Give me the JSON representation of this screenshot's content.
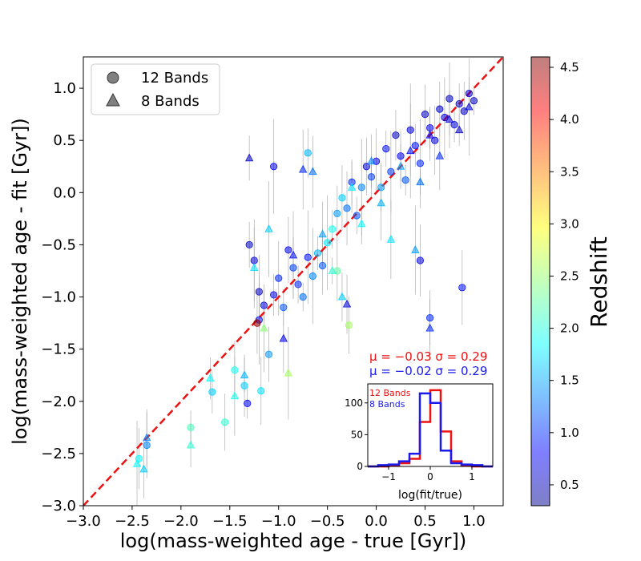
{
  "chart_data": [
    {
      "type": "scatter",
      "xlabel": "log(mass-weighted age - true [Gyr])",
      "ylabel": "log(mass-weighted age - fit [Gyr])",
      "xlim": [
        -3.0,
        1.3
      ],
      "ylim": [
        -3.0,
        1.3
      ],
      "x_ticks": [
        "−3.0",
        "−2.5",
        "−2.0",
        "−1.5",
        "−1.0",
        "−0.5",
        "0.0",
        "0.5",
        "1.0"
      ],
      "y_ticks": [
        "−3.0",
        "−2.5",
        "−2.0",
        "−1.5",
        "−1.0",
        "−0.5",
        "0.0",
        "0.5",
        "1.0"
      ],
      "reference_line": {
        "label": "1:1",
        "color": "#ee1111",
        "style": "dashed",
        "from": [
          -3.0,
          -3.0
        ],
        "to": [
          1.3,
          1.3
        ]
      },
      "legend": {
        "position": "upper-left",
        "entries": [
          {
            "label": "12 Bands",
            "marker": "circle"
          },
          {
            "label": "8 Bands",
            "marker": "triangle"
          }
        ]
      },
      "annotations": {
        "stats_12": "μ = −0.03  σ = 0.29",
        "stats_8": "μ = −0.02  σ = 0.29",
        "stats_12_color": "#ee1111",
        "stats_8_color": "#1a1aee"
      },
      "colorbar": {
        "label": "Redshift",
        "range": [
          0.3,
          4.6
        ],
        "ticks": [
          "0.5",
          "1.0",
          "1.5",
          "2.0",
          "2.5",
          "3.0",
          "3.5",
          "4.0",
          "4.5"
        ]
      },
      "series": [
        {
          "name": "12 Bands",
          "marker": "circle",
          "points": [
            [
              -2.43,
              -2.55,
              1.9
            ],
            [
              -2.35,
              -2.42,
              1.4
            ],
            [
              -1.9,
              -2.25,
              2.2
            ],
            [
              -1.68,
              -1.91,
              1.7
            ],
            [
              -1.45,
              -1.7,
              2.0
            ],
            [
              -1.35,
              -1.85,
              1.7
            ],
            [
              -1.32,
              -2.02,
              0.8
            ],
            [
              -1.2,
              -1.22,
              0.9
            ],
            [
              -1.18,
              -1.9,
              1.8
            ],
            [
              -1.1,
              -1.55,
              1.5
            ],
            [
              -1.3,
              -0.5,
              0.6
            ],
            [
              -1.25,
              -0.65,
              0.7
            ],
            [
              -1.2,
              -0.95,
              0.6
            ],
            [
              -1.15,
              -1.08,
              0.7
            ],
            [
              -1.22,
              -1.25,
              4.5
            ],
            [
              -1.05,
              -0.98,
              0.8
            ],
            [
              -1.0,
              -0.82,
              1.0
            ],
            [
              -0.95,
              -1.1,
              1.2
            ],
            [
              -0.9,
              -0.55,
              0.8
            ],
            [
              -0.85,
              -0.72,
              1.1
            ],
            [
              -0.8,
              -0.88,
              1.0
            ],
            [
              -0.75,
              -1.0,
              1.3
            ],
            [
              -0.7,
              -0.62,
              0.9
            ],
            [
              -0.65,
              -0.8,
              1.4
            ],
            [
              -0.6,
              -0.58,
              1.6
            ],
            [
              -0.55,
              -0.7,
              1.2
            ],
            [
              -0.5,
              -0.48,
              1.8
            ],
            [
              -0.45,
              -0.35,
              2.0
            ],
            [
              -0.4,
              -0.2,
              1.5
            ],
            [
              -0.35,
              -0.05,
              1.7
            ],
            [
              -0.3,
              -0.15,
              1.3
            ],
            [
              -0.25,
              0.1,
              1.0
            ],
            [
              -0.2,
              -0.22,
              1.2
            ],
            [
              -0.15,
              0.05,
              1.4
            ],
            [
              -0.1,
              0.25,
              0.7
            ],
            [
              -0.05,
              0.15,
              1.1
            ],
            [
              0.0,
              0.3,
              0.8
            ],
            [
              0.05,
              0.05,
              1.5
            ],
            [
              0.1,
              0.42,
              0.9
            ],
            [
              0.15,
              0.2,
              1.1
            ],
            [
              0.2,
              0.55,
              0.6
            ],
            [
              0.25,
              0.35,
              0.8
            ],
            [
              0.3,
              0.12,
              1.2
            ],
            [
              0.35,
              0.6,
              0.7
            ],
            [
              0.4,
              0.45,
              0.9
            ],
            [
              0.45,
              0.28,
              1.0
            ],
            [
              0.5,
              0.75,
              0.6
            ],
            [
              0.55,
              0.62,
              0.8
            ],
            [
              0.6,
              0.5,
              0.7
            ],
            [
              0.65,
              0.8,
              0.6
            ],
            [
              0.7,
              0.72,
              0.7
            ],
            [
              0.75,
              0.9,
              0.6
            ],
            [
              0.8,
              0.65,
              0.7
            ],
            [
              0.85,
              0.85,
              0.6
            ],
            [
              0.9,
              0.78,
              0.6
            ],
            [
              0.95,
              0.95,
              0.7
            ],
            [
              1.0,
              0.88,
              0.6
            ],
            [
              0.55,
              -1.2,
              1.0
            ],
            [
              0.88,
              -0.91,
              0.9
            ],
            [
              0.45,
              -0.65,
              0.7
            ],
            [
              -1.05,
              0.25,
              0.8
            ],
            [
              -0.7,
              0.38,
              1.6
            ],
            [
              -0.28,
              -1.27,
              2.6
            ],
            [
              -0.4,
              -0.75,
              2.3
            ],
            [
              -1.55,
              -2.2,
              2.1
            ]
          ]
        },
        {
          "name": "8 Bands",
          "marker": "triangle",
          "points": [
            [
              -2.45,
              -2.6,
              1.9
            ],
            [
              -2.38,
              -2.65,
              1.7
            ],
            [
              -2.35,
              -2.35,
              1.4
            ],
            [
              -1.9,
              -2.42,
              2.1
            ],
            [
              -1.7,
              -1.78,
              1.9
            ],
            [
              -1.45,
              -1.95,
              2.0
            ],
            [
              -1.35,
              -1.75,
              1.6
            ],
            [
              -1.3,
              0.33,
              0.6
            ],
            [
              -1.25,
              -0.72,
              1.8
            ],
            [
              -1.15,
              -1.3,
              2.5
            ],
            [
              -1.1,
              -0.35,
              1.7
            ],
            [
              -0.9,
              -1.73,
              2.6
            ],
            [
              -0.85,
              -0.6,
              0.9
            ],
            [
              -0.75,
              0.22,
              1.0
            ],
            [
              -0.65,
              0.2,
              1.3
            ],
            [
              -0.55,
              -0.4,
              1.5
            ],
            [
              -0.45,
              -0.75,
              2.1
            ],
            [
              -0.35,
              -1.0,
              1.7
            ],
            [
              -0.25,
              0.05,
              1.8
            ],
            [
              -0.15,
              -0.3,
              1.9
            ],
            [
              -0.05,
              0.3,
              1.4
            ],
            [
              0.05,
              -0.1,
              1.6
            ],
            [
              0.15,
              -0.45,
              1.8
            ],
            [
              0.25,
              0.25,
              1.5
            ],
            [
              0.35,
              0.4,
              0.9
            ],
            [
              0.45,
              0.1,
              1.3
            ],
            [
              0.55,
              0.55,
              0.8
            ],
            [
              0.65,
              0.35,
              1.0
            ],
            [
              0.75,
              0.7,
              0.7
            ],
            [
              0.85,
              0.6,
              0.6
            ],
            [
              0.95,
              0.82,
              0.7
            ],
            [
              0.55,
              -1.3,
              1.0
            ],
            [
              0.4,
              -0.55,
              1.5
            ],
            [
              -0.95,
              -1.4,
              0.8
            ],
            [
              -0.3,
              -1.07,
              0.7
            ]
          ]
        }
      ]
    },
    {
      "type": "histogram",
      "position": "inset lower-right",
      "xlabel": "log(fit/true)",
      "xlim": [
        -1.5,
        1.5
      ],
      "ylim": [
        0,
        130
      ],
      "x_ticks": [
        "−1",
        "0",
        "1"
      ],
      "y_ticks": [
        "0",
        "50",
        "100"
      ],
      "legend": [
        "12 Bands",
        "8 Bands"
      ],
      "bin_edges": [
        -1.5,
        -1.25,
        -1.0,
        -0.75,
        -0.5,
        -0.25,
        0.0,
        0.25,
        0.5,
        0.75,
        1.0,
        1.25,
        1.5
      ],
      "series": [
        {
          "name": "12 Bands",
          "color": "#ee1111",
          "counts": [
            0,
            0,
            2,
            5,
            12,
            70,
            120,
            55,
            8,
            2,
            0,
            0
          ]
        },
        {
          "name": "8 Bands",
          "color": "#1a1aee",
          "counts": [
            0,
            2,
            3,
            8,
            20,
            115,
            100,
            25,
            5,
            3,
            2,
            0
          ]
        }
      ]
    }
  ]
}
